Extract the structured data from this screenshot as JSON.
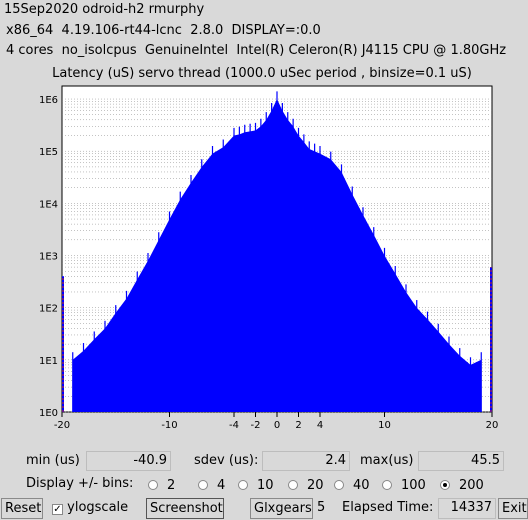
{
  "header": {
    "line1": "15Sep2020 odroid-h2 rmurphy",
    "line2": "x86_64  4.19.106-rt44-lcnc  2.8.0  DISPLAY=:0.0",
    "line3": "4 cores  no_isolcpus  GenuineIntel  Intel(R) Celeron(R) J4115 CPU @ 1.80GHz"
  },
  "chart_data": {
    "type": "bar",
    "title": "Latency (uS) servo thread (1000.0 uSec period , binsize=0.1 uS)",
    "xlim": [
      -20,
      20
    ],
    "x_ticks": [
      "-20",
      "-10",
      "-4",
      "-2",
      "0",
      "2",
      "4",
      "10",
      "20"
    ],
    "y_scale": "log",
    "y_ticks": [
      "1E0",
      "1E1",
      "1E2",
      "1E3",
      "1E4",
      "1E5",
      "1E6"
    ],
    "grid": true,
    "bar_color": "#0000ff",
    "outlier_color": "#cc2222",
    "x": [
      -20,
      -19,
      -18,
      -17,
      -16,
      -15,
      -14,
      -13,
      -12,
      -11,
      -10,
      -9,
      -8,
      -7,
      -6,
      -5,
      -4,
      -3.5,
      -3,
      -2.5,
      -2,
      -1.5,
      -1,
      -0.5,
      0,
      0.5,
      1,
      1.5,
      2,
      2.5,
      3,
      3.5,
      4,
      5,
      6,
      7,
      8,
      9,
      10,
      11,
      12,
      13,
      14,
      15,
      16,
      17,
      18,
      19,
      20
    ],
    "y": [
      400,
      10,
      15,
      25,
      40,
      80,
      150,
      350,
      800,
      2000,
      5000,
      12000,
      25000,
      50000,
      90000,
      120000,
      200000,
      210000,
      230000,
      240000,
      250000,
      300000,
      400000,
      600000,
      1000000,
      600000,
      400000,
      300000,
      200000,
      150000,
      110000,
      100000,
      90000,
      70000,
      40000,
      15000,
      6000,
      2500,
      1000,
      450,
      200,
      100,
      60,
      35,
      20,
      12,
      8,
      10,
      600
    ]
  },
  "stats": {
    "min_label": "min (us)",
    "min_value": "-40.9",
    "sdev_label": "sdev (us):",
    "sdev_value": "2.4",
    "max_label": "max(us)",
    "max_value": "45.5"
  },
  "bins": {
    "label": "Display +/- bins:",
    "options": [
      "2",
      "4",
      "10",
      "20",
      "40",
      "100",
      "200"
    ],
    "selected": "200"
  },
  "toolbar": {
    "reset": "Reset",
    "ylogscale": "ylogscale",
    "ylogscale_checked": true,
    "screenshot": "Screenshot",
    "glxgears": "Glxgears",
    "glxgears_value": "5",
    "elapsed_label": "Elapsed Time:",
    "elapsed_value": "14337",
    "exit": "Exit"
  }
}
